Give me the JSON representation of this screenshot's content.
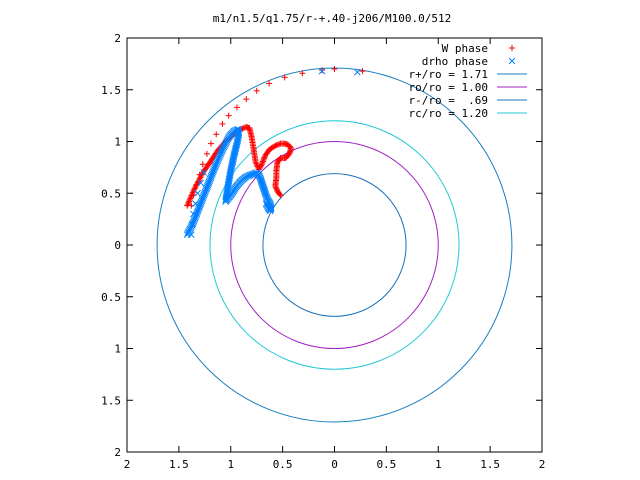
{
  "chart_data": {
    "type": "scatter",
    "title": "m1/n1.5/q1.75/r-+.40-j206/M100.0/512",
    "xlabel": "",
    "ylabel": "",
    "xlim": [
      -2,
      2
    ],
    "ylim": [
      -2,
      2
    ],
    "x_ticks": [
      -2,
      -1.5,
      -1,
      -0.5,
      0,
      0.5,
      1,
      1.5,
      2
    ],
    "y_ticks": [
      -2,
      -1.5,
      -1,
      -0.5,
      0,
      0.5,
      1,
      1.5,
      2
    ],
    "x_tick_labels": [
      "2",
      "1.5",
      "1",
      "0.5",
      "0",
      "0.5",
      "1",
      "1.5",
      "2"
    ],
    "y_tick_labels": [
      "2",
      "1.5",
      "1",
      "0.5",
      "0",
      "0.5",
      "1",
      "1.5",
      "2"
    ],
    "grid": false,
    "legend_position": "top-right",
    "series": [
      {
        "name": "W phase",
        "marker": "plus",
        "color": "#ff0000",
        "outer_x": [
          -1.38,
          -1.36,
          -1.33,
          -1.3,
          -1.27,
          -1.23,
          -1.19,
          -1.14,
          -1.08,
          -1.02,
          -0.94,
          -0.85,
          -0.75,
          -0.63,
          -0.48,
          -0.31,
          -0.12,
          0.0,
          0.27
        ],
        "outer_y": [
          0.38,
          0.48,
          0.58,
          0.68,
          0.78,
          0.88,
          0.98,
          1.07,
          1.17,
          1.25,
          1.33,
          1.41,
          1.49,
          1.56,
          1.62,
          1.66,
          1.69,
          1.7,
          1.68
        ],
        "path_x": [
          -1.42,
          -1.36,
          -1.28,
          -1.2,
          -1.12,
          -1.05,
          -0.97,
          -0.9,
          -0.85,
          -0.82,
          -0.8,
          -0.78,
          -0.76,
          -0.73,
          -0.7,
          -0.67,
          -0.63,
          -0.57,
          -0.52,
          -0.48,
          -0.45,
          -0.42,
          -0.43,
          -0.47,
          -0.52,
          -0.55,
          -0.56,
          -0.56,
          -0.57,
          -0.55,
          -0.52
        ],
        "path_y": [
          0.38,
          0.52,
          0.68,
          0.8,
          0.92,
          1.0,
          1.07,
          1.12,
          1.14,
          1.13,
          1.05,
          0.93,
          0.8,
          0.73,
          0.78,
          0.86,
          0.92,
          0.96,
          0.98,
          0.98,
          0.97,
          0.94,
          0.89,
          0.84,
          0.84,
          0.8,
          0.72,
          0.65,
          0.57,
          0.52,
          0.48
        ]
      },
      {
        "name": "drho phase",
        "marker": "cross",
        "color": "#0080ff",
        "outer_x": [
          -1.38,
          -1.37,
          -1.36,
          -1.34,
          -1.32,
          -1.29,
          -1.26,
          -0.12,
          0.22
        ],
        "outer_y": [
          0.1,
          0.2,
          0.3,
          0.4,
          0.5,
          0.6,
          0.7,
          1.68,
          1.67
        ],
        "path_x": [
          -1.42,
          -1.36,
          -1.29,
          -1.22,
          -1.15,
          -1.08,
          -1.02,
          -0.97,
          -0.93,
          -0.92,
          -0.94,
          -0.97,
          -1.0,
          -1.03,
          -1.05,
          -1.0,
          -0.95,
          -0.9,
          -0.85,
          -0.8,
          -0.75,
          -0.72,
          -0.7,
          -0.68,
          -0.66,
          -0.64,
          -0.62,
          -0.61,
          -0.62,
          -0.64,
          -0.66
        ],
        "path_y": [
          0.1,
          0.22,
          0.4,
          0.58,
          0.76,
          0.92,
          1.04,
          1.1,
          1.12,
          1.08,
          0.98,
          0.86,
          0.72,
          0.55,
          0.42,
          0.48,
          0.56,
          0.62,
          0.66,
          0.68,
          0.7,
          0.66,
          0.6,
          0.54,
          0.48,
          0.43,
          0.4,
          0.36,
          0.33,
          0.36,
          0.4
        ]
      }
    ],
    "circles": [
      {
        "name": "r+/ro = 1.71",
        "radius": 1.71,
        "color": "#1a7fbf"
      },
      {
        "name": "ro/ro = 1.00",
        "radius": 1.0,
        "color": "#a020c0"
      },
      {
        "name": "r-/ro =  .69",
        "radius": 0.69,
        "color": "#1a70b8"
      },
      {
        "name": "rc/ro = 1.20",
        "radius": 1.2,
        "color": "#20c8d8"
      }
    ]
  }
}
